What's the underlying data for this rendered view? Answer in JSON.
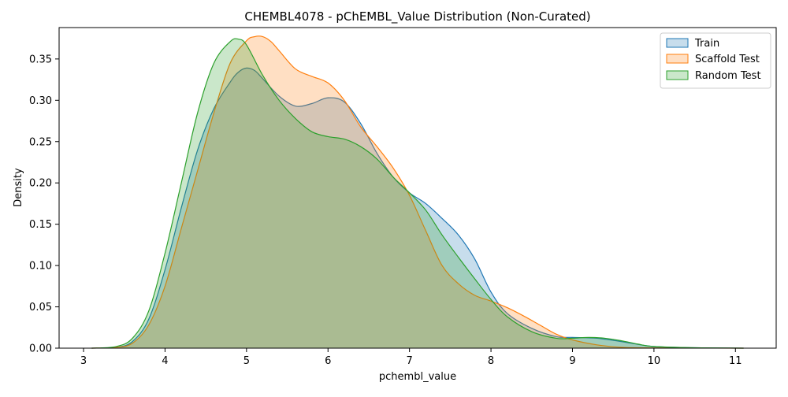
{
  "chart_data": {
    "type": "area",
    "title": "CHEMBL4078 - pChEMBL_Value Distribution (Non-Curated)",
    "xlabel": "pchembl_value",
    "ylabel": "Density",
    "xlim": [
      2.7,
      11.5
    ],
    "ylim": [
      0,
      0.388
    ],
    "x_ticks": [
      3,
      4,
      5,
      6,
      7,
      8,
      9,
      10,
      11
    ],
    "y_ticks": [
      0.0,
      0.05,
      0.1,
      0.15,
      0.2,
      0.25,
      0.3,
      0.35
    ],
    "x_tick_labels": [
      "3",
      "4",
      "5",
      "6",
      "7",
      "8",
      "9",
      "10",
      "11"
    ],
    "y_tick_labels": [
      "0.00",
      "0.05",
      "0.10",
      "0.15",
      "0.20",
      "0.25",
      "0.30",
      "0.35"
    ],
    "grid": false,
    "legend_position": "top-right",
    "series": [
      {
        "name": "Train",
        "color": "#1f77b4",
        "x": [
          3.1,
          3.4,
          3.6,
          3.8,
          4.0,
          4.2,
          4.4,
          4.6,
          4.8,
          4.9,
          5.0,
          5.1,
          5.2,
          5.4,
          5.6,
          5.8,
          6.0,
          6.2,
          6.4,
          6.6,
          6.8,
          7.0,
          7.2,
          7.4,
          7.6,
          7.8,
          8.0,
          8.2,
          8.5,
          8.8,
          9.0,
          9.3,
          9.6,
          10.0,
          10.5,
          11.1
        ],
        "y": [
          0.0,
          0.001,
          0.008,
          0.035,
          0.095,
          0.17,
          0.24,
          0.29,
          0.322,
          0.334,
          0.339,
          0.336,
          0.326,
          0.305,
          0.293,
          0.296,
          0.303,
          0.298,
          0.272,
          0.236,
          0.207,
          0.188,
          0.175,
          0.157,
          0.137,
          0.108,
          0.068,
          0.042,
          0.024,
          0.014,
          0.013,
          0.012,
          0.008,
          0.002,
          0.0005,
          0.0
        ]
      },
      {
        "name": "Scaffold Test",
        "color": "#ff7f0e",
        "x": [
          3.1,
          3.4,
          3.6,
          3.8,
          4.0,
          4.2,
          4.4,
          4.6,
          4.8,
          5.0,
          5.1,
          5.2,
          5.3,
          5.4,
          5.6,
          5.8,
          6.0,
          6.2,
          6.4,
          6.6,
          6.8,
          7.0,
          7.2,
          7.4,
          7.6,
          7.8,
          8.0,
          8.2,
          8.4,
          8.6,
          8.8,
          9.0,
          9.3,
          9.6,
          10.0,
          10.5,
          11.1
        ],
        "y": [
          0.0,
          0.001,
          0.006,
          0.028,
          0.075,
          0.145,
          0.215,
          0.285,
          0.345,
          0.372,
          0.377,
          0.377,
          0.371,
          0.36,
          0.338,
          0.329,
          0.321,
          0.3,
          0.268,
          0.244,
          0.218,
          0.185,
          0.142,
          0.1,
          0.078,
          0.064,
          0.057,
          0.049,
          0.039,
          0.028,
          0.017,
          0.01,
          0.004,
          0.001,
          0.0003,
          0.0001,
          0.0
        ]
      },
      {
        "name": "Random Test",
        "color": "#2ca02c",
        "x": [
          3.1,
          3.4,
          3.6,
          3.8,
          4.0,
          4.2,
          4.4,
          4.6,
          4.8,
          4.9,
          5.0,
          5.2,
          5.4,
          5.6,
          5.8,
          6.0,
          6.2,
          6.4,
          6.6,
          6.8,
          7.0,
          7.2,
          7.4,
          7.6,
          7.8,
          8.0,
          8.2,
          8.5,
          8.8,
          9.0,
          9.2,
          9.4,
          9.6,
          9.8,
          10.0,
          10.5,
          11.1
        ],
        "y": [
          0.0,
          0.002,
          0.012,
          0.045,
          0.115,
          0.2,
          0.285,
          0.345,
          0.371,
          0.374,
          0.367,
          0.33,
          0.3,
          0.278,
          0.262,
          0.256,
          0.253,
          0.244,
          0.229,
          0.207,
          0.188,
          0.167,
          0.137,
          0.11,
          0.084,
          0.059,
          0.038,
          0.02,
          0.012,
          0.012,
          0.013,
          0.012,
          0.009,
          0.005,
          0.002,
          0.0005,
          0.0
        ]
      }
    ]
  }
}
